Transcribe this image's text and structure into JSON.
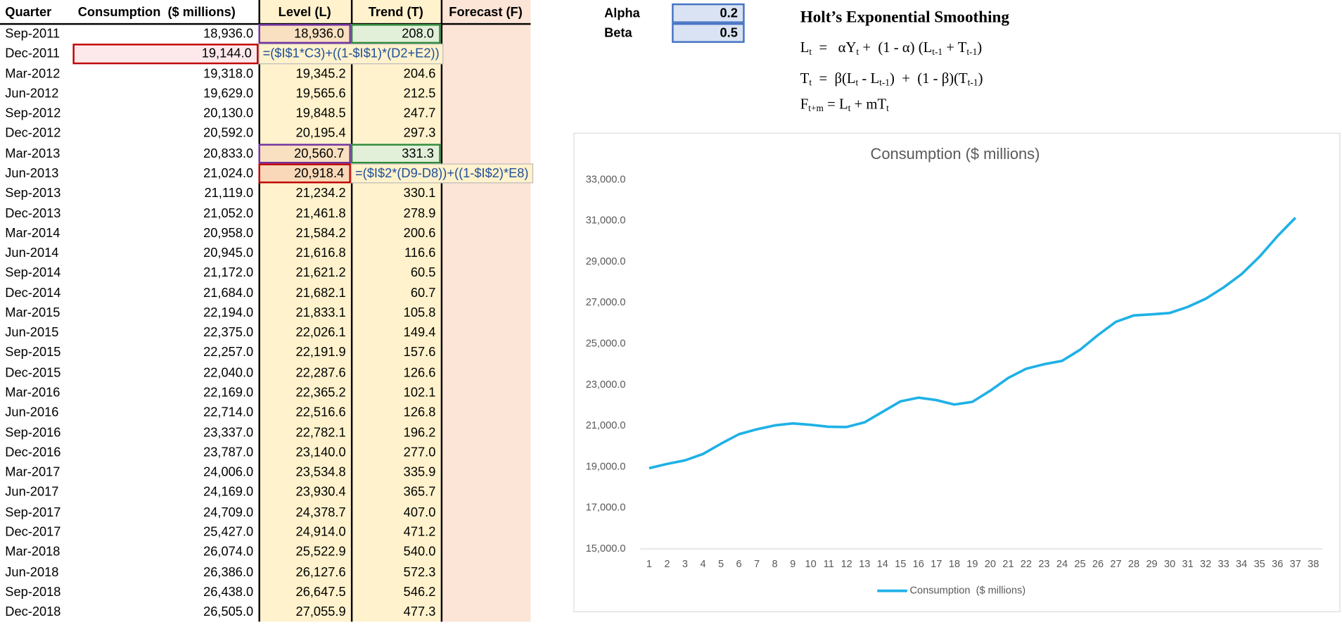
{
  "table": {
    "headers": [
      "Quarter",
      "Consumption  ($ millions)",
      "Level (L)",
      "Trend (T)",
      "Forecast (F)"
    ],
    "rows": [
      [
        "Sep-2011",
        "18,936.0",
        "18,936.0",
        "208.0"
      ],
      [
        "Dec-2011",
        "19,144.0",
        "=($I$1*C3)+((1-$I$1)*(D2+E2))"
      ],
      [
        "Mar-2012",
        "19,318.0",
        "19,345.2",
        "204.6"
      ],
      [
        "Jun-2012",
        "19,629.0",
        "19,565.6",
        "212.5"
      ],
      [
        "Sep-2012",
        "20,130.0",
        "19,848.5",
        "247.7"
      ],
      [
        "Dec-2012",
        "20,592.0",
        "20,195.4",
        "297.3"
      ],
      [
        "Mar-2013",
        "20,833.0",
        "20,560.7",
        "331.3"
      ],
      [
        "Jun-2013",
        "21,024.0",
        "20,918.4",
        "=($I$2*(D9-D8))+((1-$I$2)*E8)"
      ],
      [
        "Sep-2013",
        "21,119.0",
        "21,234.2",
        "330.1"
      ],
      [
        "Dec-2013",
        "21,052.0",
        "21,461.8",
        "278.9"
      ],
      [
        "Mar-2014",
        "20,958.0",
        "21,584.2",
        "200.6"
      ],
      [
        "Jun-2014",
        "20,945.0",
        "21,616.8",
        "116.6"
      ],
      [
        "Sep-2014",
        "21,172.0",
        "21,621.2",
        "60.5"
      ],
      [
        "Dec-2014",
        "21,684.0",
        "21,682.1",
        "60.7"
      ],
      [
        "Mar-2015",
        "22,194.0",
        "21,833.1",
        "105.8"
      ],
      [
        "Jun-2015",
        "22,375.0",
        "22,026.1",
        "149.4"
      ],
      [
        "Sep-2015",
        "22,257.0",
        "22,191.9",
        "157.6"
      ],
      [
        "Dec-2015",
        "22,040.0",
        "22,287.6",
        "126.6"
      ],
      [
        "Mar-2016",
        "22,169.0",
        "22,365.2",
        "102.1"
      ],
      [
        "Jun-2016",
        "22,714.0",
        "22,516.6",
        "126.8"
      ],
      [
        "Sep-2016",
        "23,337.0",
        "22,782.1",
        "196.2"
      ],
      [
        "Dec-2016",
        "23,787.0",
        "23,140.0",
        "277.0"
      ],
      [
        "Mar-2017",
        "24,006.0",
        "23,534.8",
        "335.9"
      ],
      [
        "Jun-2017",
        "24,169.0",
        "23,930.4",
        "365.7"
      ],
      [
        "Sep-2017",
        "24,709.0",
        "24,378.7",
        "407.0"
      ],
      [
        "Dec-2017",
        "25,427.0",
        "24,914.0",
        "471.2"
      ],
      [
        "Mar-2018",
        "26,074.0",
        "25,522.9",
        "540.0"
      ],
      [
        "Jun-2018",
        "26,386.0",
        "26,127.6",
        "572.3"
      ],
      [
        "Sep-2018",
        "26,438.0",
        "26,647.5",
        "546.2"
      ],
      [
        "Dec-2018",
        "26,505.0",
        "27,055.9",
        "477.3"
      ]
    ]
  },
  "parameters": [
    {
      "name": "Alpha",
      "value": "0.2"
    },
    {
      "name": "Beta",
      "value": "0.5"
    }
  ],
  "notes": {
    "title": "Holt’s Exponential Smoothing",
    "equations": [
      [
        "L",
        "t",
        "  =   αY",
        "t",
        " +  (1 - α) (L",
        "t-1",
        " + T",
        "t-1",
        ")"
      ],
      [
        "T",
        "t",
        "  =  β(L",
        "t",
        " - L",
        "t-1",
        ")  +  (1 - β)(T",
        "t-1",
        ")"
      ],
      [
        "F",
        "t+m",
        " = L",
        "t",
        " + mT",
        "t"
      ]
    ]
  },
  "chart_data": {
    "type": "line",
    "title": "Consumption ($ millions)",
    "categories": [
      1,
      2,
      3,
      4,
      5,
      6,
      7,
      8,
      9,
      10,
      11,
      12,
      13,
      14,
      15,
      16,
      17,
      18,
      19,
      20,
      21,
      22,
      23,
      24,
      25,
      26,
      27,
      28,
      29,
      30,
      31,
      32,
      33,
      34,
      35,
      36,
      37,
      38
    ],
    "series": [
      {
        "name": "Consumption  ($ millions)",
        "color": "#1fb1e6",
        "values": [
          18936,
          19144,
          19318,
          19629,
          20130,
          20592,
          20833,
          21024,
          21119,
          21052,
          20958,
          20945,
          21172,
          21684,
          22194,
          22375,
          22257,
          22040,
          22169,
          22714,
          23337,
          23787,
          24006,
          24169,
          24709,
          25427,
          26074,
          26386,
          26438,
          26505,
          26800,
          27200,
          27750,
          28400,
          29250,
          30250,
          31150,
          null
        ]
      }
    ],
    "ylim": [
      15000,
      33000
    ],
    "yticks": [
      {
        "value": 15000,
        "label": "15,000.0"
      },
      {
        "value": 17000,
        "label": "17,000.0"
      },
      {
        "value": 19000,
        "label": "19,000.0"
      },
      {
        "value": 21000,
        "label": "21,000.0"
      },
      {
        "value": 23000,
        "label": "23,000.0"
      },
      {
        "value": 25000,
        "label": "25,000.0"
      },
      {
        "value": 27000,
        "label": "27,000.0"
      },
      {
        "value": 29000,
        "label": "29,000.0"
      },
      {
        "value": 31000,
        "label": "31,000.0"
      },
      {
        "value": 33000,
        "label": "33,000.0"
      }
    ],
    "legend": "bottom"
  }
}
